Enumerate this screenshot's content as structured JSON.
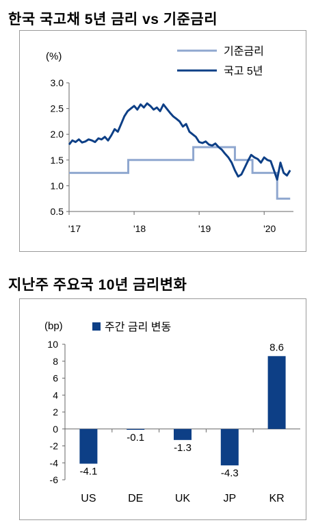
{
  "colors": {
    "policy_line": "#8fa7cf",
    "bond_line": "#0d3f86",
    "bar": "#0d3f86",
    "axis": "#666666"
  },
  "charts": [
    {
      "title": "한국 국고채 5년 금리 vs 기준금리",
      "ylabel": "(%)",
      "legend": [
        "기준금리",
        "국고 5년"
      ],
      "x_tick_labels": [
        "'17",
        "'18",
        "'19",
        "'20"
      ]
    },
    {
      "title": "지난주 주요국 10년 금리변화",
      "ylabel": "(bp)",
      "legend": [
        "주간 금리 변동"
      ],
      "bar_labels": [
        "-4.1",
        "-0.1",
        "-1.3",
        "-4.3",
        "8.6"
      ]
    }
  ],
  "chart_data": [
    {
      "type": "line",
      "title": "한국 국고채 5년 금리 vs 기준금리",
      "ylabel": "(%)",
      "xlim": [
        2017.0,
        2020.45
      ],
      "ylim": [
        0.5,
        3.0
      ],
      "yticks": [
        0.5,
        1.0,
        1.5,
        2.0,
        2.5,
        3.0
      ],
      "ytick_labels": [
        "0.5",
        "1.0",
        "1.5",
        "2.0",
        "2.5",
        "3.0"
      ],
      "xticks": [
        2017,
        2018,
        2019,
        2020
      ],
      "xtick_labels": [
        "'17",
        "'18",
        "'19",
        "'20"
      ],
      "legend_position": "top-right",
      "series": [
        {
          "name": "기준금리",
          "step": true,
          "x": [
            2017.0,
            2017.91,
            2018.91,
            2019.55,
            2019.82,
            2020.2,
            2020.4
          ],
          "y": [
            1.25,
            1.5,
            1.75,
            1.5,
            1.25,
            0.75,
            0.75
          ]
        },
        {
          "name": "국고 5년",
          "x": [
            2017.0,
            2017.05,
            2017.1,
            2017.15,
            2017.2,
            2017.25,
            2017.3,
            2017.35,
            2017.4,
            2017.45,
            2017.5,
            2017.55,
            2017.6,
            2017.65,
            2017.7,
            2017.75,
            2017.8,
            2017.85,
            2017.9,
            2017.95,
            2018.0,
            2018.05,
            2018.1,
            2018.15,
            2018.2,
            2018.25,
            2018.3,
            2018.35,
            2018.4,
            2018.45,
            2018.5,
            2018.55,
            2018.6,
            2018.65,
            2018.7,
            2018.75,
            2018.8,
            2018.85,
            2018.9,
            2018.95,
            2019.0,
            2019.05,
            2019.1,
            2019.15,
            2019.2,
            2019.25,
            2019.3,
            2019.35,
            2019.4,
            2019.45,
            2019.5,
            2019.55,
            2019.6,
            2019.65,
            2019.7,
            2019.75,
            2019.8,
            2019.85,
            2019.9,
            2019.95,
            2020.0,
            2020.05,
            2020.1,
            2020.15,
            2020.2,
            2020.25,
            2020.3,
            2020.35,
            2020.4
          ],
          "y": [
            1.8,
            1.88,
            1.85,
            1.9,
            1.84,
            1.86,
            1.9,
            1.88,
            1.85,
            1.92,
            1.9,
            1.95,
            1.88,
            1.98,
            2.1,
            2.05,
            2.2,
            2.35,
            2.45,
            2.5,
            2.55,
            2.48,
            2.58,
            2.52,
            2.6,
            2.55,
            2.48,
            2.52,
            2.45,
            2.58,
            2.5,
            2.42,
            2.35,
            2.3,
            2.25,
            2.15,
            2.2,
            2.05,
            2.0,
            1.95,
            1.85,
            1.83,
            1.86,
            1.8,
            1.78,
            1.82,
            1.75,
            1.7,
            1.62,
            1.55,
            1.45,
            1.3,
            1.18,
            1.22,
            1.35,
            1.48,
            1.6,
            1.55,
            1.52,
            1.45,
            1.55,
            1.5,
            1.48,
            1.3,
            1.12,
            1.45,
            1.25,
            1.2,
            1.3
          ]
        }
      ]
    },
    {
      "type": "bar",
      "title": "지난주 주요국 10년 금리변화",
      "ylabel": "(bp)",
      "categories": [
        "US",
        "DE",
        "UK",
        "JP",
        "KR"
      ],
      "series": [
        {
          "name": "주간 금리 변동",
          "values": [
            -4.1,
            -0.1,
            -1.3,
            -4.3,
            8.6
          ]
        }
      ],
      "ylim": [
        -6,
        10
      ],
      "yticks": [
        -6,
        -4,
        -2,
        0,
        2,
        4,
        6,
        8,
        10
      ],
      "ytick_labels": [
        "-6",
        "-4",
        "-2",
        "0",
        "2",
        "4",
        "6",
        "8",
        "10"
      ],
      "data_labels": [
        "-4.1",
        "-0.1",
        "-1.3",
        "-4.3",
        "8.6"
      ],
      "legend_position": "top-left"
    }
  ]
}
